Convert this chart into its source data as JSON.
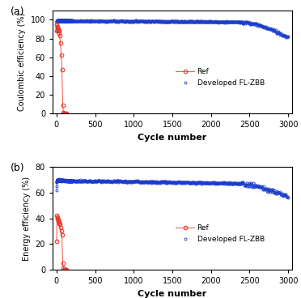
{
  "panel_a": {
    "title": "(a)",
    "ylabel": "Coulombic efficiency (%)",
    "xlabel": "Cycle number",
    "ylim": [
      0,
      110
    ],
    "yticks": [
      0,
      20,
      40,
      60,
      80,
      100
    ],
    "xlim": [
      -50,
      3050
    ],
    "xticks": [
      0,
      500,
      1000,
      1500,
      2000,
      2500,
      3000
    ],
    "ref_color": "#e8392a",
    "blue_color": "#1a3ccc",
    "ref_x": [
      1,
      5,
      10,
      15,
      20,
      25,
      30,
      35,
      40,
      50,
      60,
      70,
      80,
      90,
      100,
      110,
      120,
      130
    ],
    "ref_y": [
      88,
      95,
      93,
      91,
      90,
      89,
      88,
      86,
      83,
      75,
      62,
      47,
      9,
      1,
      0,
      0,
      0,
      0
    ]
  },
  "panel_b": {
    "title": "(b)",
    "ylabel": "Energy efficiency (%)",
    "xlabel": "Cycle number",
    "ylim": [
      0,
      80
    ],
    "yticks": [
      0,
      20,
      40,
      60,
      80
    ],
    "xlim": [
      -50,
      3050
    ],
    "xticks": [
      0,
      500,
      1000,
      1500,
      2000,
      2500,
      3000
    ],
    "ref_color": "#e8392a",
    "blue_color": "#1a3ccc",
    "ref_x": [
      1,
      5,
      10,
      15,
      20,
      25,
      30,
      35,
      40,
      50,
      60,
      70,
      80,
      90,
      100,
      110,
      120,
      130
    ],
    "ref_y": [
      22,
      42,
      41,
      40,
      39,
      38,
      37,
      36,
      35,
      33,
      30,
      27,
      5,
      1,
      0,
      0,
      0,
      0
    ]
  }
}
